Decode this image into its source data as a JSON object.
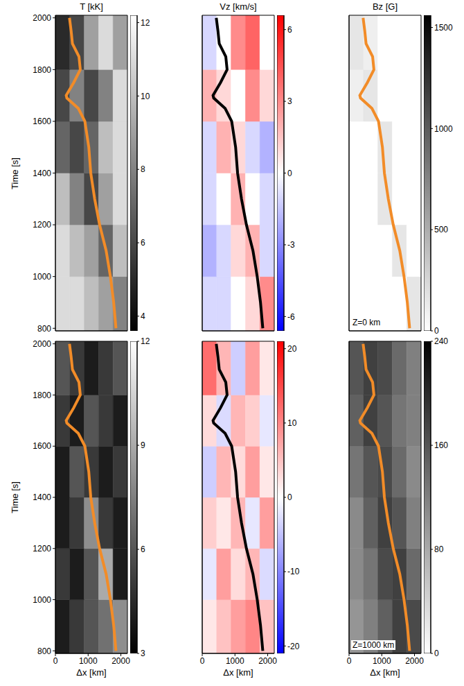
{
  "chart_data": [
    {
      "type": "heatmap",
      "title": "T [kK]",
      "y_label": "Time [s]",
      "tick_labels": "y",
      "color": "gray",
      "xlim": [
        0,
        2200
      ],
      "ylim": [
        790,
        2010
      ],
      "xticks": [
        0,
        1000,
        2000
      ],
      "yticks": [
        800,
        1000,
        1200,
        1400,
        1600,
        1800,
        2000
      ],
      "x_edges": [
        0,
        440,
        880,
        1320,
        1760,
        2200
      ],
      "t_edges": [
        790,
        1000,
        1200,
        1400,
        1600,
        1800,
        2010
      ],
      "cells": [
        [
          11,
          11,
          10,
          9,
          8
        ],
        [
          11,
          10,
          9,
          7,
          10
        ],
        [
          10,
          8,
          6,
          9,
          11
        ],
        [
          7,
          6,
          7,
          10,
          11
        ],
        [
          6,
          8,
          6,
          8,
          11
        ],
        [
          5,
          6,
          9,
          11,
          9
        ]
      ],
      "colorbar_range": [
        3.6,
        12.2
      ],
      "colorbar_ticks": [
        4,
        6,
        8,
        10,
        12
      ],
      "track": {
        "color": "#f28c28",
        "x": [
          1850,
          1780,
          1680,
          1550,
          1350,
          1200,
          1080,
          1020,
          900,
          700,
          350,
          330,
          560,
          760,
          720,
          520,
          480,
          430
        ],
        "t": [
          800,
          900,
          1000,
          1100,
          1200,
          1300,
          1400,
          1500,
          1600,
          1650,
          1690,
          1700,
          1750,
          1800,
          1850,
          1900,
          1950,
          2000
        ]
      }
    },
    {
      "type": "heatmap",
      "title": "Vz [km/s]",
      "tick_labels": false,
      "color": "bwr",
      "xlim": [
        0,
        2200
      ],
      "ylim": [
        790,
        2010
      ],
      "xticks": [
        0,
        1000,
        2000
      ],
      "yticks": [
        800,
        1000,
        1200,
        1400,
        1600,
        1800,
        2000
      ],
      "x_edges": [
        0,
        440,
        880,
        1320,
        1760,
        2200
      ],
      "t_edges": [
        790,
        1000,
        1200,
        1400,
        1600,
        1800,
        2010
      ],
      "cells": [
        [
          -1,
          -1,
          0,
          1,
          3
        ],
        [
          -2,
          -1,
          1,
          2,
          -1
        ],
        [
          -1,
          0,
          2,
          0,
          -1
        ],
        [
          -1,
          2,
          1,
          -1,
          -2
        ],
        [
          2,
          1,
          0,
          3,
          1
        ],
        [
          -1,
          0,
          3,
          4,
          0
        ]
      ],
      "colorbar_range": [
        -6.6,
        6.6
      ],
      "colorbar_ticks": [
        -6,
        -3,
        0,
        3,
        6
      ],
      "track": {
        "color": "#000000",
        "x": [
          1850,
          1780,
          1680,
          1550,
          1350,
          1200,
          1080,
          1020,
          900,
          700,
          350,
          330,
          560,
          760,
          720,
          520,
          480,
          430
        ],
        "t": [
          800,
          900,
          1000,
          1100,
          1200,
          1300,
          1400,
          1500,
          1600,
          1650,
          1690,
          1700,
          1750,
          1800,
          1850,
          1900,
          1950,
          2000
        ]
      }
    },
    {
      "type": "heatmap",
      "title": "Bz [G]",
      "annotation": "Z=0 km",
      "tick_labels": false,
      "color": "gray_r",
      "xlim": [
        0,
        2200
      ],
      "ylim": [
        790,
        2010
      ],
      "xticks": [
        0,
        1000,
        2000
      ],
      "yticks": [
        800,
        1000,
        1200,
        1400,
        1600,
        1800,
        2000
      ],
      "x_edges": [
        0,
        440,
        880,
        1320,
        1760,
        2200
      ],
      "t_edges": [
        790,
        1000,
        1200,
        1400,
        1600,
        1800,
        2010
      ],
      "cells": [
        [
          0,
          0,
          0,
          0,
          150
        ],
        [
          0,
          0,
          0,
          150,
          0
        ],
        [
          0,
          0,
          150,
          0,
          0
        ],
        [
          0,
          0,
          150,
          0,
          0
        ],
        [
          100,
          150,
          0,
          0,
          0
        ],
        [
          150,
          100,
          0,
          0,
          0
        ]
      ],
      "colorbar_range": [
        0,
        1560
      ],
      "colorbar_ticks": [
        0,
        500,
        1000,
        1500
      ],
      "track": {
        "color": "#f28c28",
        "x": [
          1850,
          1780,
          1680,
          1550,
          1350,
          1200,
          1080,
          1020,
          900,
          700,
          350,
          330,
          560,
          760,
          720,
          520,
          480,
          430
        ],
        "t": [
          800,
          900,
          1000,
          1100,
          1200,
          1300,
          1400,
          1500,
          1600,
          1650,
          1690,
          1700,
          1750,
          1800,
          1850,
          1900,
          1950,
          2000
        ]
      }
    },
    {
      "type": "heatmap",
      "x_label": "Δx [km]",
      "y_label": "Time [s]",
      "tick_labels": true,
      "color": "gray",
      "xlim": [
        0,
        2200
      ],
      "ylim": [
        790,
        2010
      ],
      "xticks": [
        0,
        1000,
        2000
      ],
      "yticks": [
        800,
        1000,
        1200,
        1400,
        1600,
        1800,
        2000
      ],
      "x_edges": [
        0,
        440,
        880,
        1320,
        1760,
        2200
      ],
      "t_edges": [
        790,
        1000,
        1200,
        1400,
        1600,
        1800,
        2010
      ],
      "cells": [
        [
          4,
          5,
          6,
          7,
          8
        ],
        [
          5,
          4,
          6,
          9,
          4
        ],
        [
          4,
          5,
          8,
          5,
          4
        ],
        [
          4,
          6,
          5,
          4,
          5
        ],
        [
          5,
          4,
          6,
          5,
          4
        ],
        [
          6,
          5,
          4,
          5,
          6
        ]
      ],
      "colorbar_range": [
        3,
        12
      ],
      "colorbar_ticks": [
        3,
        6,
        9,
        12
      ],
      "track": {
        "color": "#f28c28",
        "x": [
          1850,
          1780,
          1680,
          1550,
          1350,
          1200,
          1080,
          1020,
          900,
          700,
          350,
          330,
          560,
          760,
          720,
          520,
          480,
          430
        ],
        "t": [
          800,
          900,
          1000,
          1100,
          1200,
          1300,
          1400,
          1500,
          1600,
          1650,
          1690,
          1700,
          1750,
          1800,
          1850,
          1900,
          1950,
          2000
        ]
      }
    },
    {
      "type": "heatmap",
      "x_label": "Δx [km]",
      "tick_labels": "x",
      "color": "bwr",
      "xlim": [
        0,
        2200
      ],
      "ylim": [
        790,
        2010
      ],
      "xticks": [
        0,
        1000,
        2000
      ],
      "yticks": [
        800,
        1000,
        1200,
        1400,
        1600,
        1800,
        2000
      ],
      "x_edges": [
        0,
        440,
        880,
        1320,
        1760,
        2200
      ],
      "t_edges": [
        790,
        1000,
        1200,
        1400,
        1600,
        1800,
        2010
      ],
      "cells": [
        [
          2,
          5,
          8,
          10,
          5
        ],
        [
          -2,
          8,
          3,
          6,
          -3
        ],
        [
          4,
          2,
          6,
          -2,
          8
        ],
        [
          -4,
          6,
          3,
          8,
          2
        ],
        [
          3,
          -3,
          6,
          4,
          -2
        ],
        [
          12,
          6,
          -4,
          8,
          2
        ]
      ],
      "colorbar_range": [
        -21,
        21
      ],
      "colorbar_ticks": [
        -20,
        -10,
        0,
        10,
        20
      ],
      "track": {
        "color": "#000000",
        "x": [
          1850,
          1780,
          1680,
          1550,
          1350,
          1200,
          1080,
          1020,
          900,
          700,
          350,
          330,
          560,
          760,
          720,
          520,
          480,
          430
        ],
        "t": [
          800,
          900,
          1000,
          1100,
          1200,
          1300,
          1400,
          1500,
          1600,
          1650,
          1690,
          1700,
          1750,
          1800,
          1850,
          1900,
          1950,
          2000
        ]
      }
    },
    {
      "type": "heatmap",
      "x_label": "Δx [km]",
      "annotation": "Z=1000 km",
      "tick_labels": "x",
      "color": "gray_r",
      "xlim": [
        0,
        2200
      ],
      "ylim": [
        790,
        2010
      ],
      "xticks": [
        0,
        1000,
        2000
      ],
      "yticks": [
        800,
        1000,
        1200,
        1400,
        1600,
        1800,
        2000
      ],
      "x_edges": [
        0,
        440,
        880,
        1320,
        1760,
        2200
      ],
      "t_edges": [
        790,
        1000,
        1200,
        1400,
        1600,
        1800,
        2010
      ],
      "cells": [
        [
          100,
          120,
          150,
          180,
          170
        ],
        [
          110,
          130,
          170,
          180,
          140
        ],
        [
          110,
          150,
          180,
          160,
          120
        ],
        [
          130,
          160,
          170,
          140,
          110
        ],
        [
          150,
          180,
          160,
          130,
          120
        ],
        [
          160,
          180,
          170,
          140,
          120
        ]
      ],
      "colorbar_range": [
        0,
        240
      ],
      "colorbar_ticks": [
        0,
        80,
        160,
        240
      ],
      "track": {
        "color": "#f28c28",
        "x": [
          1850,
          1780,
          1680,
          1550,
          1350,
          1200,
          1080,
          1020,
          900,
          700,
          350,
          330,
          560,
          760,
          720,
          520,
          480,
          430
        ],
        "t": [
          800,
          900,
          1000,
          1100,
          1200,
          1300,
          1400,
          1500,
          1600,
          1650,
          1690,
          1700,
          1750,
          1800,
          1850,
          1900,
          1950,
          2000
        ]
      }
    }
  ]
}
